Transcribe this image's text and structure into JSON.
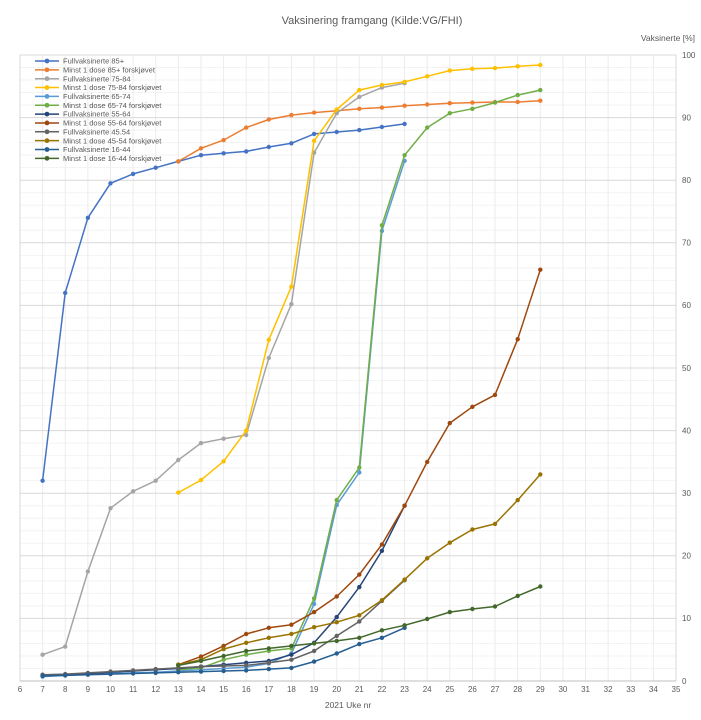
{
  "chart_data": {
    "type": "line",
    "title": "Vaksinering framgang (Kilde:VG/FHI)",
    "x_axis": {
      "label": "2021 Uke nr",
      "min": 6,
      "max": 35,
      "tick_step": 1
    },
    "y_axis": {
      "label": "Vaksinerte [%]",
      "min": 0,
      "max": 100,
      "major_step": 10,
      "minor_step": 2,
      "side": "right"
    },
    "grid": true,
    "legend_position": "top-left",
    "marker": "circle",
    "series": [
      {
        "name": "Fullvaksinerte 85+",
        "color": "#4472C4",
        "start_x": 7,
        "values": [
          32,
          62,
          74,
          79.5,
          81,
          82,
          83,
          84,
          84.3,
          84.6,
          85.3,
          85.9,
          87.4,
          87.7,
          88,
          88.5,
          89
        ]
      },
      {
        "name": "Minst 1 dose 85+ forskjøvet",
        "color": "#ED7D31",
        "start_x": 13,
        "values": [
          83,
          85.1,
          86.4,
          88.4,
          89.7,
          90.4,
          90.8,
          91.1,
          91.4,
          91.6,
          91.9,
          92.1,
          92.3,
          92.4,
          92.5,
          92.5,
          92.7
        ]
      },
      {
        "name": "Fullvaksinerte 75-84",
        "color": "#A5A5A5",
        "start_x": 7,
        "values": [
          4.2,
          5.5,
          17.5,
          27.6,
          30.3,
          32,
          35.3,
          38,
          38.7,
          39.3,
          51.6,
          60.2,
          84.4,
          90.7,
          93.3,
          94.8,
          95.5
        ]
      },
      {
        "name": "Minst 1 dose 75-84 forskjøvet",
        "color": "#FFC000",
        "start_x": 13,
        "values": [
          30.1,
          32.1,
          35.1,
          40,
          54.5,
          63,
          86.3,
          91.3,
          94.4,
          95.2,
          95.7,
          96.6,
          97.5,
          97.8,
          97.9,
          98.2,
          98.4
        ]
      },
      {
        "name": "Fullvaksinerte 65-74",
        "color": "#5B9BD5",
        "start_x": 7,
        "values": [
          0.7,
          0.9,
          1.1,
          1.2,
          1.3,
          1.4,
          1.6,
          1.8,
          2,
          2.2,
          2.8,
          4.4,
          12.3,
          28.1,
          33.3,
          71.9,
          83.1
        ]
      },
      {
        "name": "Minst 1 dose 65-74 forskjøvet",
        "color": "#70AD47",
        "start_x": 13,
        "values": [
          1.8,
          2.1,
          3.4,
          4.2,
          4.8,
          5.2,
          13.2,
          28.9,
          34.1,
          72.8,
          84,
          88.4,
          90.7,
          91.4,
          92.4,
          93.6,
          94.4
        ]
      },
      {
        "name": "Fullvaksinerte 55-64",
        "color": "#264478",
        "start_x": 7,
        "values": [
          0.9,
          1,
          1.2,
          1.4,
          1.6,
          1.8,
          2,
          2.3,
          2.6,
          2.9,
          3.2,
          4.2,
          6.1,
          10.2,
          15,
          20.8,
          28
        ]
      },
      {
        "name": "Minst 1 dose 55-64 forskjøvet",
        "color": "#9E480E",
        "start_x": 13,
        "values": [
          2.6,
          3.9,
          5.6,
          7.5,
          8.5,
          9,
          11,
          13.5,
          17,
          21.8,
          28,
          35,
          41.2,
          43.8,
          45.7,
          54.6,
          65.7
        ]
      },
      {
        "name": "Fullvaksinerte 45.54",
        "color": "#636363",
        "start_x": 7,
        "values": [
          1,
          1.1,
          1.3,
          1.5,
          1.7,
          1.9,
          2.1,
          2.3,
          2.4,
          2.5,
          2.9,
          3.4,
          4.8,
          7.2,
          9.5,
          12.8,
          16.1
        ]
      },
      {
        "name": "Minst 1 dose 45-54 forskjøvet",
        "color": "#997300",
        "start_x": 13,
        "values": [
          2.6,
          3.4,
          5.1,
          6.1,
          6.9,
          7.5,
          8.6,
          9.4,
          10.5,
          12.9,
          16.2,
          19.6,
          22.1,
          24.2,
          25.1,
          28.9,
          33
        ]
      },
      {
        "name": "Fullvaksinerte 16-44",
        "color": "#255E91",
        "start_x": 7,
        "values": [
          0.8,
          0.9,
          1,
          1.1,
          1.2,
          1.3,
          1.4,
          1.5,
          1.6,
          1.7,
          1.9,
          2.1,
          3.1,
          4.4,
          5.9,
          6.9,
          8.5
        ]
      },
      {
        "name": "Minst 1 dose 16-44 forskjøvet",
        "color": "#43682B",
        "start_x": 13,
        "values": [
          2.5,
          3.2,
          4,
          4.8,
          5.2,
          5.6,
          6,
          6.4,
          6.9,
          8.1,
          8.9,
          9.9,
          11,
          11.5,
          11.9,
          13.6,
          15.1
        ]
      }
    ]
  },
  "style": {
    "text_color": "#595959",
    "grid_minor": "#f3f3f3",
    "grid_major": "#d9d9d9",
    "grid_vertical": "#ececec",
    "plot_border": "#d9d9d9",
    "axis_line": "#bfbfbf",
    "background": "#ffffff"
  }
}
